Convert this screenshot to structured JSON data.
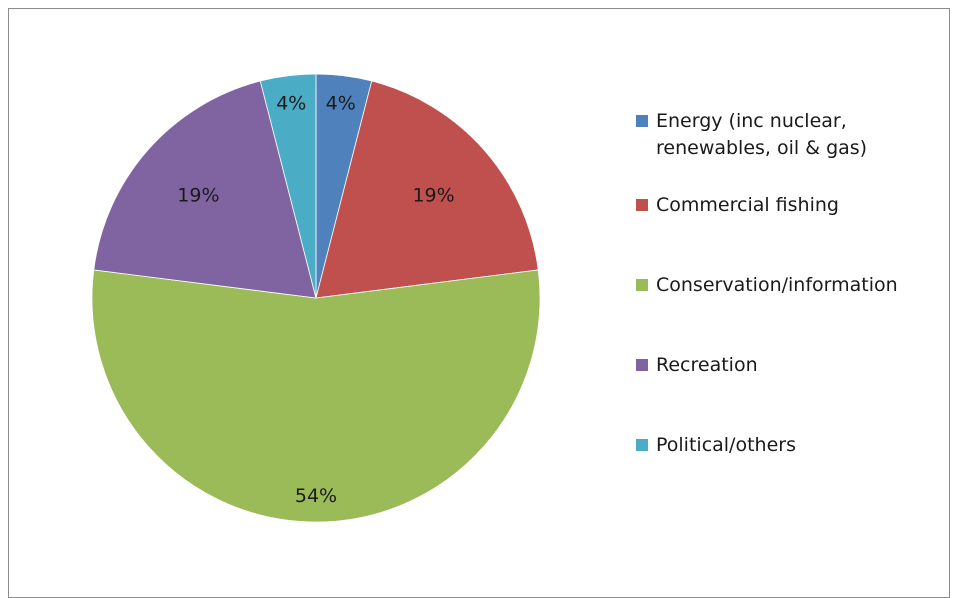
{
  "chart_data": {
    "type": "pie",
    "title": "",
    "categories": [
      "Energy (inc nuclear,\nrenewables, oil & gas)",
      "Commercial fishing",
      "Conservation/information",
      "Recreation",
      "Political/others"
    ],
    "values": [
      4,
      19,
      54,
      19,
      4
    ],
    "data_labels": [
      "4%",
      "19%",
      "54%",
      "19%",
      "4%"
    ],
    "colors": [
      "#4f81bd",
      "#c0504d",
      "#9bbb59",
      "#8064a2",
      "#4bacc6"
    ],
    "legend_position": "right"
  }
}
